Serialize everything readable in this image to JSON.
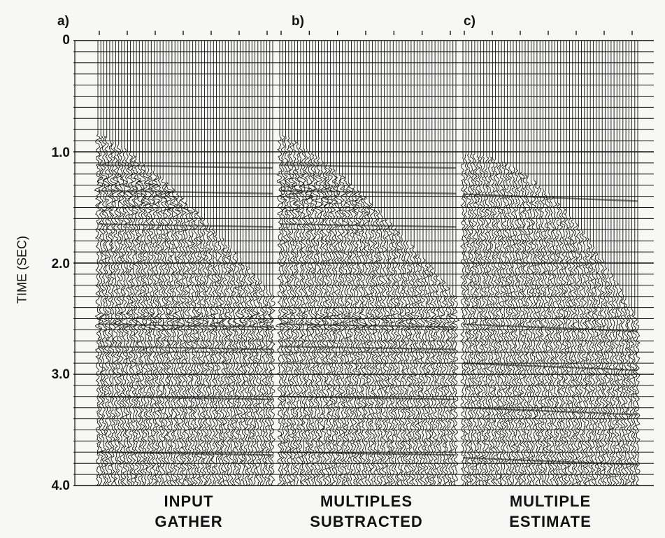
{
  "panels": [
    {
      "letter": "a)",
      "caption_line1": "INPUT",
      "caption_line2": "GATHER"
    },
    {
      "letter": "b)",
      "caption_line1": "MULTIPLES",
      "caption_line2": "SUBTRACTED"
    },
    {
      "letter": "c)",
      "caption_line1": "MULTIPLE",
      "caption_line2": "ESTIMATE"
    }
  ],
  "time_axis": {
    "title": "TIME (SEC)",
    "ticks": [
      "0",
      "1.0",
      "2.0",
      "3.0",
      "4.0"
    ]
  },
  "colors": {
    "ink": "#111111",
    "paper": "#f7f7f5"
  }
}
